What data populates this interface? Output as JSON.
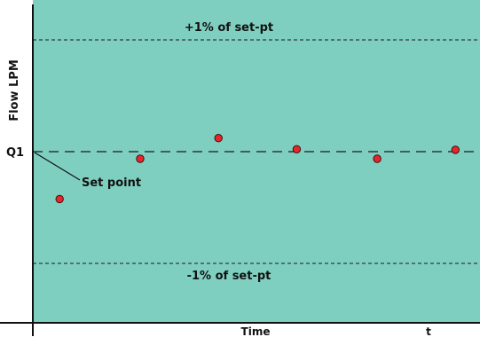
{
  "colors": {
    "plot_background": "#7fcfc0",
    "point_fill": "#e8262a",
    "point_stroke": "#3a1010",
    "axis": "#111111"
  },
  "chart_data": {
    "type": "scatter",
    "title": "",
    "xlabel": "Time",
    "ylabel": "Flow LPM",
    "x_end_label": "t",
    "grid": false,
    "legend": "none",
    "reference_lines": {
      "set_point_tick": "Q1",
      "set_point_label": "Set point",
      "upper_label": "+1% of set-pt",
      "lower_label": "-1% of set-pt",
      "upper_value": 1,
      "lower_value": -1
    },
    "xlim": [
      0,
      1
    ],
    "ylim": [
      -1.55,
      1.5
    ],
    "points": [
      {
        "x": 0.06,
        "y": -0.38
      },
      {
        "x": 0.24,
        "y": 0.0
      },
      {
        "x": 0.415,
        "y": 0.195
      },
      {
        "x": 0.59,
        "y": 0.09
      },
      {
        "x": 0.77,
        "y": 0.0
      },
      {
        "x": 0.945,
        "y": 0.085
      }
    ]
  }
}
